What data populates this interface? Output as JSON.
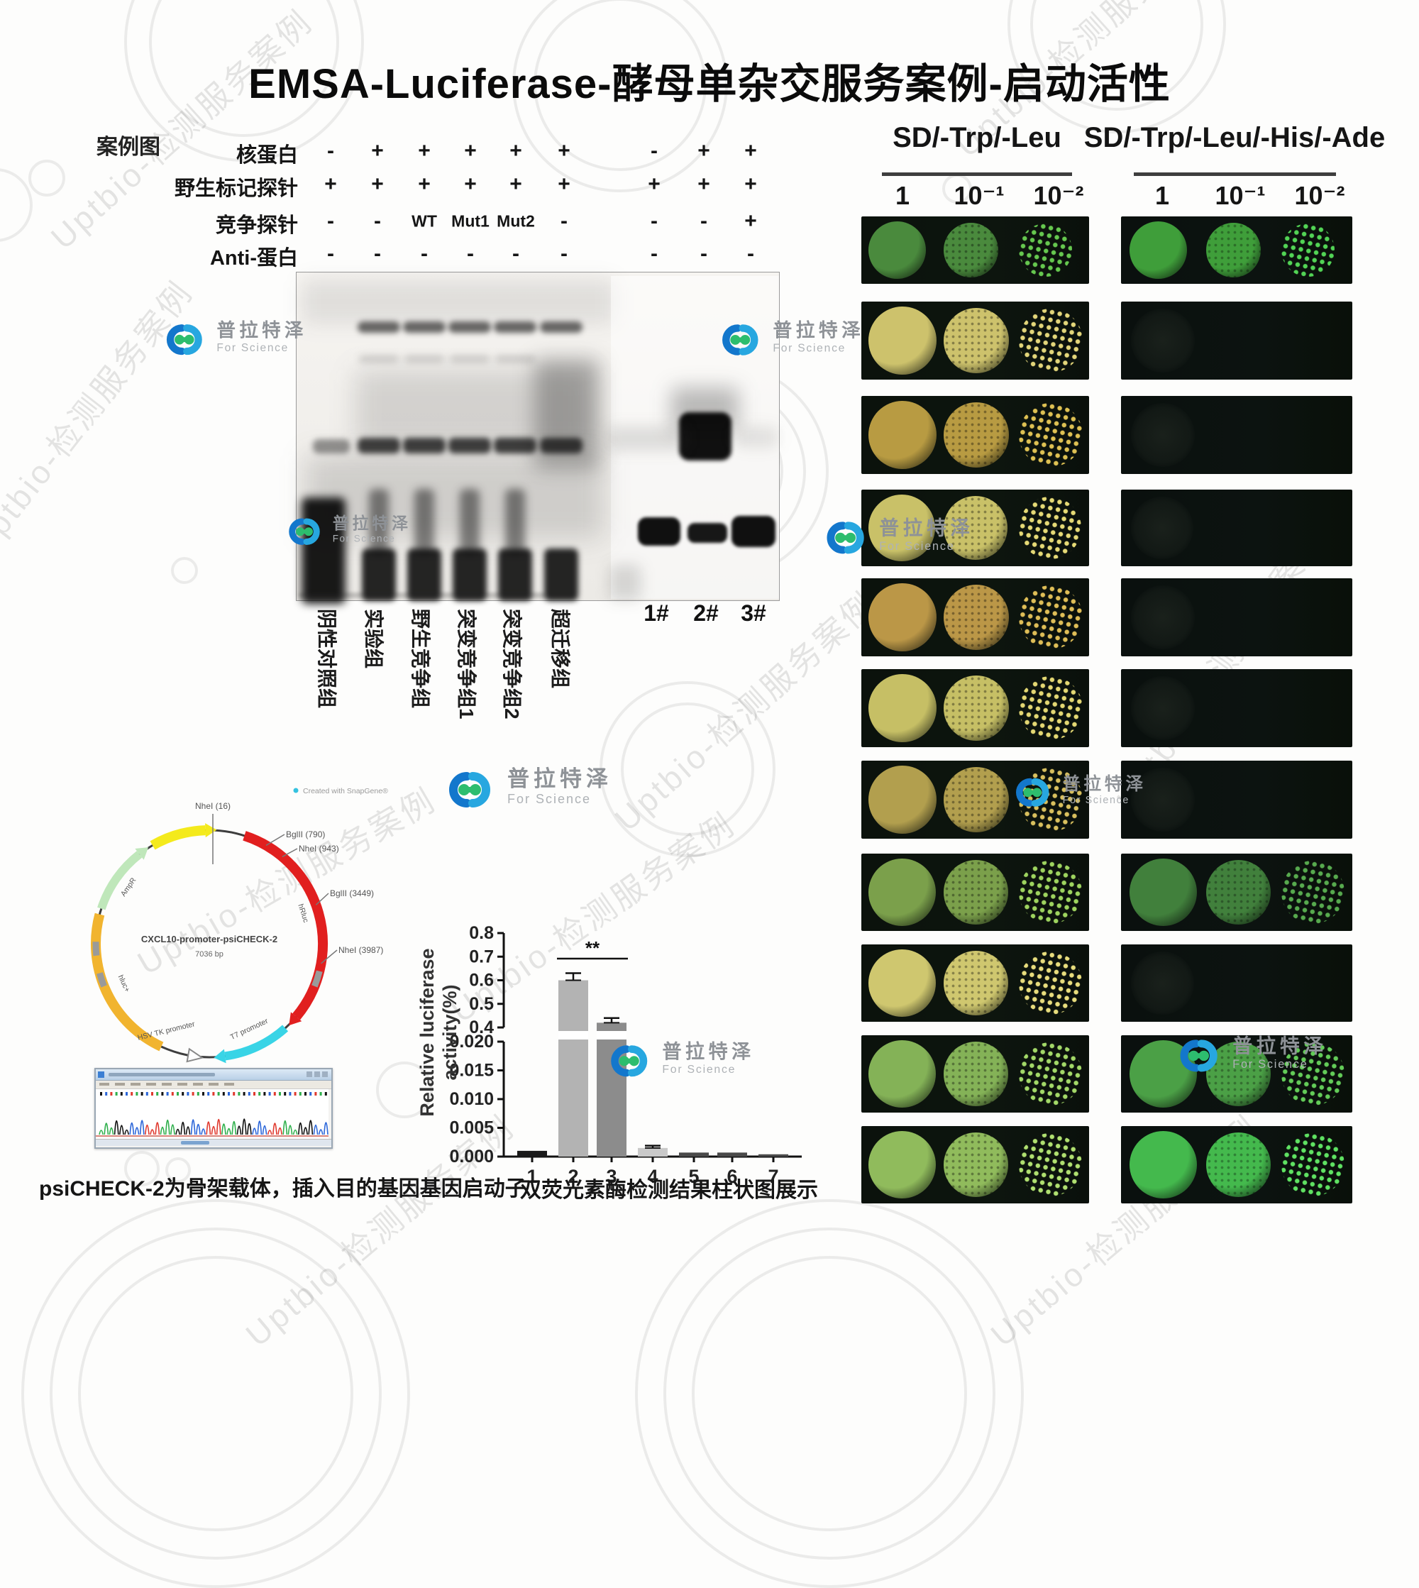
{
  "title": "EMSA-Luciferase-酵母单杂交服务案例-启动活性",
  "watermark": {
    "text": "Uptbio-检测服务案例",
    "logo_cn": "普拉特泽",
    "logo_en": "For Science",
    "logo_blue_dark": "#1377cc",
    "logo_blue_light": "#27a7e0",
    "logo_green": "#2dbd6e"
  },
  "emsa": {
    "section_label": "案例图",
    "condition_rows": [
      {
        "label": "核蛋白",
        "left": [
          "-",
          "+",
          "+",
          "+",
          "+",
          "+"
        ],
        "right": [
          "-",
          "+",
          "+"
        ]
      },
      {
        "label": "野生标记探针",
        "left": [
          "+",
          "+",
          "+",
          "+",
          "+",
          "+"
        ],
        "right": [
          "+",
          "+",
          "+"
        ]
      },
      {
        "label": "竞争探针",
        "left": [
          "-",
          "-",
          "WT",
          "Mut1",
          "Mut2",
          "-"
        ],
        "right": [
          "-",
          "-",
          "+"
        ]
      },
      {
        "label": "Anti-蛋白",
        "left": [
          "-",
          "-",
          "-",
          "-",
          "-",
          "-"
        ],
        "right": [
          "-",
          "-",
          "-"
        ]
      }
    ],
    "lane_labels": [
      "阴性对照组",
      "实验组",
      "野生竞争组",
      "突变竞争组1",
      "突变竞争组2",
      "超迁移组"
    ],
    "right_lane_labels": [
      "1#",
      "2#",
      "3#"
    ]
  },
  "plates": {
    "panel_headers": [
      "SD/-Trp/-Leu",
      "SD/-Trp/-Leu/-His/-Ade"
    ],
    "dilutions": [
      "1",
      "10⁻¹",
      "10⁻²"
    ],
    "rows": [
      {
        "left_color": "#4a8a3d",
        "left_dots": "#66c84f",
        "right_growth": true,
        "right_color": "#3f9e3a",
        "right_dots": "#52d455"
      },
      {
        "left_color": "#cdc26c",
        "left_dots": "#e3d67a",
        "right_growth": false
      },
      {
        "left_color": "#b89b42",
        "left_dots": "#dec153",
        "right_growth": false
      },
      {
        "left_color": "#c9c168",
        "left_dots": "#e6da76",
        "right_growth": false
      },
      {
        "left_color": "#bb9747",
        "left_dots": "#dfbe57",
        "right_growth": false
      },
      {
        "left_color": "#c6bf65",
        "left_dots": "#e4d873",
        "right_growth": false
      },
      {
        "left_color": "#b29f4e",
        "left_dots": "#d9c05e",
        "right_growth": false
      },
      {
        "left_color": "#7ba04b",
        "left_dots": "#9ed45f",
        "right_growth": true,
        "right_color": "#41803c",
        "right_dots": "#57aa4e"
      },
      {
        "left_color": "#cfc76f",
        "left_dots": "#e8dd7d",
        "right_growth": false
      },
      {
        "left_color": "#84b257",
        "left_dots": "#a3d968",
        "right_growth": true,
        "right_color": "#4ba046",
        "right_dots": "#63cc58"
      },
      {
        "left_color": "#90bb5c",
        "left_dots": "#b0e070",
        "right_growth": true,
        "right_color": "#44b94d",
        "right_dots": "#5fe262"
      }
    ]
  },
  "plasmid": {
    "center_name": "CXCL10-promoter-psiCHECK-2",
    "center_size": "7036 bp",
    "credit": "Created with SnapGene®",
    "site_top": "NheI (16)",
    "site_labels": [
      "BglII (790)",
      "NheI (943)",
      "BglII (3449)",
      "NheI (3987)"
    ],
    "feature_labels": {
      "red": "hRluc",
      "cyan": "T7 promoter",
      "bottom": "HSV TK promoter",
      "orange": "hluc+",
      "green": "AmpR"
    },
    "colors": {
      "red": "#e11f1f",
      "cyan": "#39d4e6",
      "orange": "#f1b42f",
      "green": "#bfe7ba",
      "yellow": "#f4ea1c"
    },
    "caption": "psiCHECK-2为骨架载体，插入目的基因基因启动子"
  },
  "chart_data": {
    "type": "bar",
    "categories": [
      "1",
      "2",
      "3",
      "4",
      "5",
      "6",
      "7"
    ],
    "values": [
      0.001,
      0.6,
      0.42,
      0.0015,
      0.0007,
      0.0007,
      0.0004
    ],
    "errors": [
      0,
      0.03,
      0.02,
      0.0004,
      0,
      0,
      0
    ],
    "bar_colors": [
      "#1a1a1a",
      "#b3b3b3",
      "#8c8c8c",
      "#c9c9c9",
      "#4a4a4a",
      "#4a4a4a",
      "#4a4a4a"
    ],
    "ylabel": "Relative luciferase activity(%)",
    "ylabel_lines": [
      "Relative luciferase",
      "activity(%)"
    ],
    "y_axis_upper": {
      "min": 0.4,
      "max": 0.8,
      "ticks": [
        "0.8",
        "0.7",
        "0.6",
        "0.5",
        "0.4"
      ]
    },
    "y_axis_lower": {
      "min": 0.0,
      "max": 0.02,
      "ticks": [
        "0.020",
        "0.015",
        "0.010",
        "0.005",
        "0.000"
      ]
    },
    "broken_axis": true,
    "significance": {
      "label": "**",
      "between": [
        "2",
        "3"
      ]
    },
    "caption": "双荧光素酶检测结果柱状图展示"
  }
}
